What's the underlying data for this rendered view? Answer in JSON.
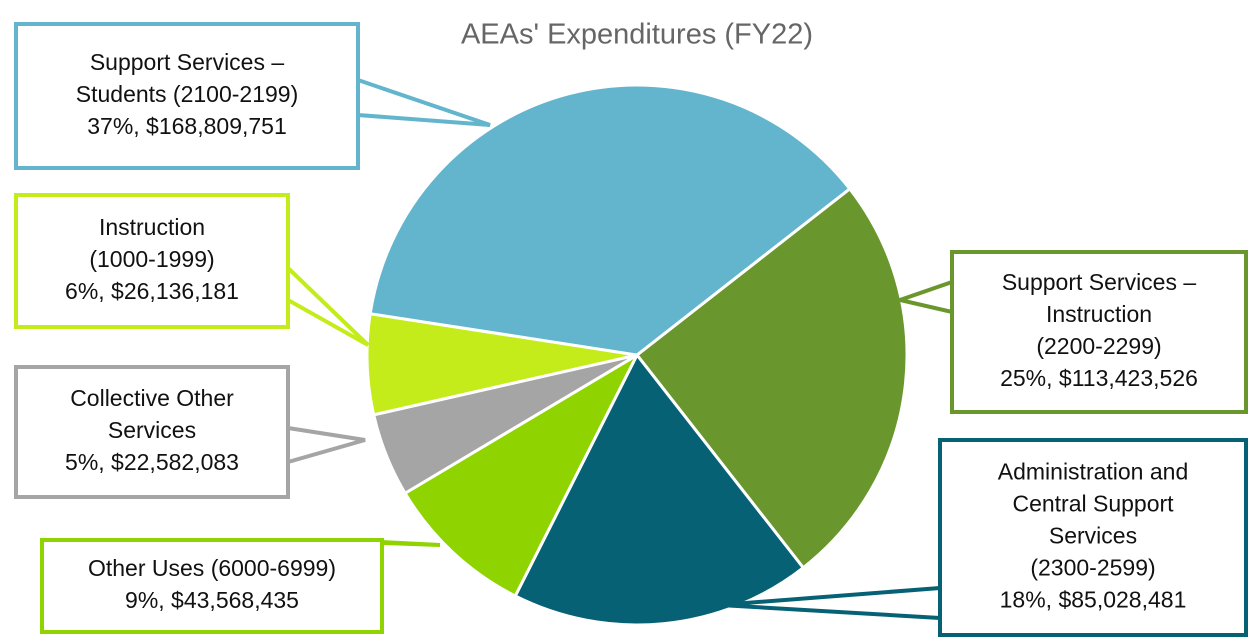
{
  "chart_data": {
    "type": "pie",
    "title": "AEAs' Expenditures (FY22)",
    "categories": [
      "Support Services –\nInstruction\n(2200-2299)",
      "Administration and\nCentral Support\nServices\n(2300-2599)",
      "Other Uses (6000-6999)",
      "Collective Other\nServices",
      "Instruction\n(1000-1999)",
      "Support Services –\nStudents (2100-2199)"
    ],
    "values": [
      25,
      18,
      9,
      5,
      6,
      37
    ],
    "value_labels": [
      "25%, $113,423,526",
      "18%, $85,028,481",
      "9%, $43,568,435",
      "5%, $22,582,083",
      "6%, $26,136,181",
      "37%, $168,809,751"
    ],
    "colors": [
      "#6a962e",
      "#076175",
      "#8fd400",
      "#a5a5a5",
      "#c3ec1a",
      "#62b5cc"
    ]
  }
}
